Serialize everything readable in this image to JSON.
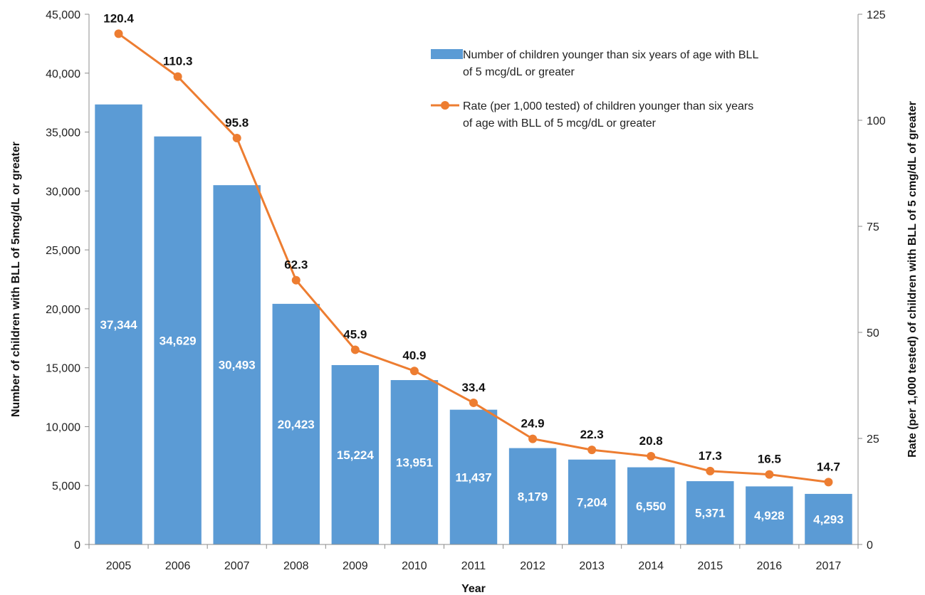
{
  "chart_data": {
    "type": "bar",
    "categories": [
      "2005",
      "2006",
      "2007",
      "2008",
      "2009",
      "2010",
      "2011",
      "2012",
      "2013",
      "2014",
      "2015",
      "2016",
      "2017"
    ],
    "series": [
      {
        "name": "Number of children younger than six years of age with BLL of 5 mcg/dL or greater",
        "type": "bar",
        "axis": "left",
        "values": [
          37344,
          34629,
          30493,
          20423,
          15224,
          13951,
          11437,
          8179,
          7204,
          6550,
          5371,
          4928,
          4293
        ],
        "labels": [
          "37,344",
          "34,629",
          "30,493",
          "20,423",
          "15,224",
          "13,951",
          "11,437",
          "8,179",
          "7,204",
          "6,550",
          "5,371",
          "4,928",
          "4,293"
        ],
        "color": "#5b9bd5"
      },
      {
        "name": "Rate (per 1,000 tested) of children younger than six years of age with BLL of 5 mcg/dL or greater",
        "type": "line",
        "axis": "right",
        "values": [
          120.4,
          110.3,
          95.8,
          62.3,
          45.9,
          40.9,
          33.4,
          24.9,
          22.3,
          20.8,
          17.3,
          16.5,
          14.7
        ],
        "labels": [
          "120.4",
          "110.3",
          "95.8",
          "62.3",
          "45.9",
          "40.9",
          "33.4",
          "24.9",
          "22.3",
          "20.8",
          "17.3",
          "16.5",
          "14.7"
        ],
        "color": "#ed7d31"
      }
    ],
    "xlabel": "Year",
    "ylabel": "Number of children with BLL of 5mcg/dL or greater",
    "y2label": "Rate (per 1,000 tested) of children with BLL of 5 cmg/dL of greater",
    "ylim": [
      0,
      45000
    ],
    "yticks": [
      0,
      5000,
      10000,
      15000,
      20000,
      25000,
      30000,
      35000,
      40000,
      45000
    ],
    "ytick_labels": [
      "0",
      "5,000",
      "10,000",
      "15,000",
      "20,000",
      "25,000",
      "30,000",
      "35,000",
      "40,000",
      "45,000"
    ],
    "y2lim": [
      0,
      125
    ],
    "y2ticks": [
      0,
      25,
      50,
      75,
      100,
      125
    ],
    "y2tick_labels": [
      "0",
      "25",
      "50",
      "75",
      "100",
      "125"
    ],
    "legend": {
      "position": "top-right",
      "bar_lines": [
        "Number of children younger than six years of age with BLL",
        "of 5 mcg/dL or greater"
      ],
      "line_lines": [
        "Rate (per 1,000 tested) of children younger than six years",
        "of age with BLL of 5 mcg/dL or greater"
      ]
    },
    "grid": false
  }
}
